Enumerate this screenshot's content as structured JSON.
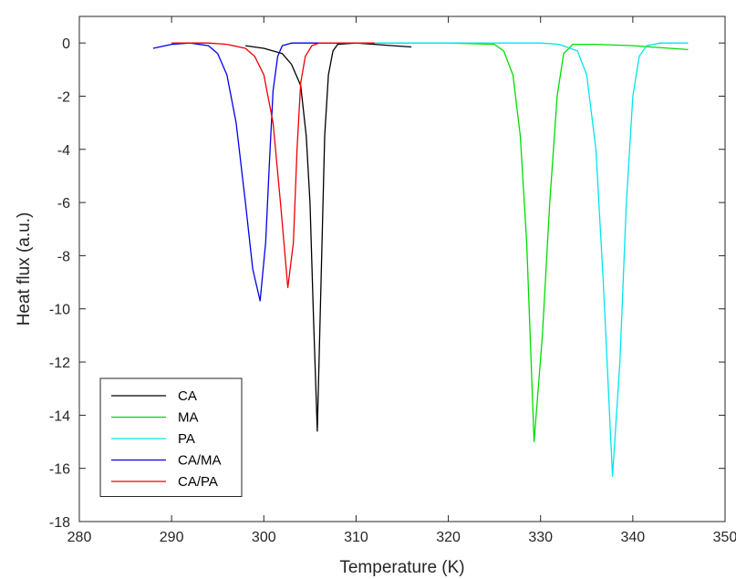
{
  "chart_data": {
    "type": "line",
    "xlabel": "Temperature (K)",
    "ylabel": "Heat flux (a.u.)",
    "xlim": [
      280,
      350
    ],
    "ylim": [
      -18,
      1
    ],
    "xticks": [
      280,
      290,
      300,
      310,
      320,
      330,
      340,
      350
    ],
    "yticks": [
      0,
      -2,
      -4,
      -6,
      -8,
      -10,
      -12,
      -14,
      -16,
      -18
    ],
    "grid": false,
    "legend_position": "bottom-left",
    "series": [
      {
        "name": "CA",
        "color": "#000000",
        "x": [
          298,
          300,
          302,
          303,
          304,
          304.6,
          305,
          305.4,
          305.8,
          306.2,
          306.6,
          307,
          307.5,
          308,
          310,
          312,
          314,
          316
        ],
        "y": [
          -0.1,
          -0.2,
          -0.4,
          -0.8,
          -1.6,
          -3.5,
          -6.0,
          -10.5,
          -14.6,
          -9.0,
          -3.5,
          -1.2,
          -0.3,
          -0.05,
          0.0,
          -0.05,
          -0.1,
          -0.15
        ]
      },
      {
        "name": "MA",
        "color": "#00dd00",
        "x": [
          313,
          320,
          325,
          326,
          327,
          327.8,
          328.5,
          329.3,
          330.2,
          331,
          331.8,
          332.5,
          333.5,
          336,
          340,
          346
        ],
        "y": [
          0.0,
          0.0,
          -0.05,
          -0.3,
          -1.2,
          -3.5,
          -7.5,
          -15.0,
          -11.0,
          -6.0,
          -2.0,
          -0.4,
          -0.05,
          -0.05,
          -0.1,
          -0.25
        ]
      },
      {
        "name": "PA",
        "color": "#00e5ee",
        "x": [
          310,
          320,
          330,
          332,
          334,
          335,
          336,
          336.8,
          337.8,
          338.6,
          339.3,
          340,
          340.7,
          341.5,
          343,
          346
        ],
        "y": [
          0.0,
          0.0,
          0.0,
          -0.05,
          -0.3,
          -1.2,
          -4.0,
          -9.0,
          -16.3,
          -12.0,
          -6.0,
          -2.0,
          -0.5,
          -0.1,
          0.0,
          0.0
        ]
      },
      {
        "name": "CA/MA",
        "color": "#0000ee",
        "x": [
          288,
          290,
          292,
          294,
          295,
          296,
          297,
          298,
          298.8,
          299.6,
          300.2,
          300.6,
          301,
          301.5,
          302,
          303,
          306,
          310
        ],
        "y": [
          -0.2,
          -0.05,
          0.0,
          -0.1,
          -0.4,
          -1.2,
          -3.0,
          -6.0,
          -8.5,
          -9.7,
          -7.5,
          -4.5,
          -1.8,
          -0.5,
          -0.1,
          0.0,
          0.0,
          0.0
        ]
      },
      {
        "name": "CA/PA",
        "color": "#ee0000",
        "x": [
          290,
          294,
          296,
          298,
          299,
          300,
          301,
          301.8,
          302.6,
          303.2,
          303.6,
          304,
          304.5,
          305.2,
          306,
          308,
          312
        ],
        "y": [
          0.0,
          0.0,
          -0.05,
          -0.2,
          -0.5,
          -1.2,
          -3.0,
          -6.0,
          -9.2,
          -7.5,
          -4.0,
          -1.5,
          -0.5,
          -0.1,
          0.0,
          0.0,
          0.0
        ]
      }
    ]
  }
}
